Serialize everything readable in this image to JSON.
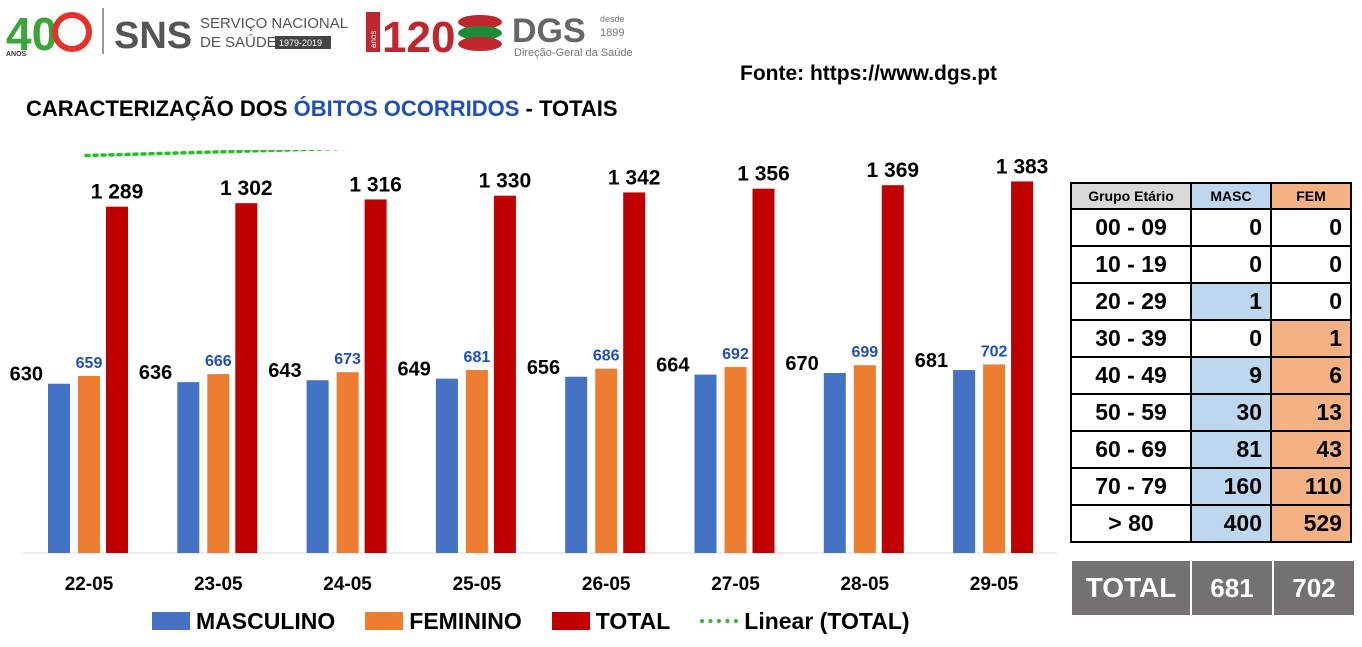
{
  "logos": {
    "sns_anos_number": "40",
    "sns_anos_label": "ANOS",
    "sns_name": "SNS",
    "sns_full_line1": "SERVIÇO NACIONAL",
    "sns_full_line2": "DE SAÚDE",
    "sns_years": "1979-2019",
    "dgs_anos_number": "120",
    "dgs_anos_label": "anos",
    "dgs_name": "DGS",
    "dgs_desde_label": "desde",
    "dgs_desde_year": "1899",
    "dgs_full": "Direção-Geral da Saúde"
  },
  "source": "Fonte: https://www.dgs.pt",
  "title": {
    "part1": "CARACTERIZAÇÃO DOS ",
    "highlight": "ÓBITOS OCORRIDOS",
    "part2": " - TOTAIS"
  },
  "chart_data": {
    "type": "bar",
    "categories": [
      "22-05",
      "23-05",
      "24-05",
      "25-05",
      "26-05",
      "27-05",
      "28-05",
      "29-05"
    ],
    "series": [
      {
        "name": "MASCULINO",
        "color": "#4472c4",
        "label_color": "#000000",
        "values": [
          630,
          636,
          643,
          649,
          656,
          664,
          670,
          681
        ]
      },
      {
        "name": "FEMININO",
        "color": "#ed7d31",
        "label_color": "#1f4fbf",
        "values": [
          659,
          666,
          673,
          681,
          686,
          692,
          699,
          702
        ]
      },
      {
        "name": "TOTAL",
        "color": "#c00000",
        "label_color": "#000000",
        "values": [
          1289,
          1302,
          1316,
          1330,
          1342,
          1356,
          1369,
          1383
        ],
        "value_labels": [
          "1 289",
          "1 302",
          "1 316",
          "1 330",
          "1 342",
          "1 356",
          "1 369",
          "1 383"
        ]
      }
    ],
    "trendline": {
      "name": "Linear (TOTAL)",
      "of_series": "TOTAL",
      "color": "#22c022",
      "style": "dotted"
    },
    "ylim": [
      0,
      1500
    ],
    "grid": false,
    "legend_position": "bottom"
  },
  "age_table": {
    "headers": [
      "Grupo Etário",
      "MASC",
      "FEM"
    ],
    "rows": [
      {
        "group": "00 - 09",
        "masc": "0",
        "fem": "0",
        "masc_hl": false,
        "fem_hl": false
      },
      {
        "group": "10 - 19",
        "masc": "0",
        "fem": "0",
        "masc_hl": false,
        "fem_hl": false
      },
      {
        "group": "20 - 29",
        "masc": "1",
        "fem": "0",
        "masc_hl": true,
        "fem_hl": false
      },
      {
        "group": "30 - 39",
        "masc": "0",
        "fem": "1",
        "masc_hl": false,
        "fem_hl": true
      },
      {
        "group": "40 - 49",
        "masc": "9",
        "fem": "6",
        "masc_hl": true,
        "fem_hl": true
      },
      {
        "group": "50 - 59",
        "masc": "30",
        "fem": "13",
        "masc_hl": true,
        "fem_hl": true
      },
      {
        "group": "60 - 69",
        "masc": "81",
        "fem": "43",
        "masc_hl": true,
        "fem_hl": true
      },
      {
        "group": "70 - 79",
        "masc": "160",
        "fem": "110",
        "masc_hl": true,
        "fem_hl": true
      },
      {
        "group": "> 80",
        "masc": "400",
        "fem": "529",
        "masc_hl": true,
        "fem_hl": true
      }
    ],
    "total": {
      "label": "TOTAL",
      "masc": "681",
      "fem": "702"
    }
  }
}
